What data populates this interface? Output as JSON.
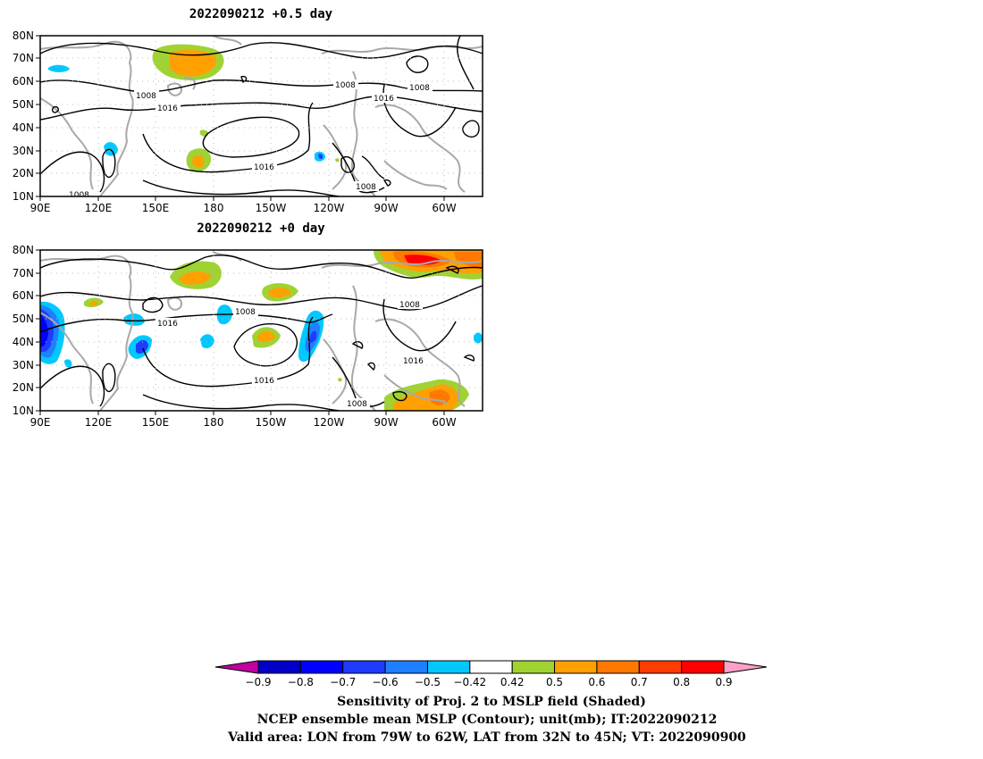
{
  "panels": [
    {
      "title": "2022090212 +0.5 day",
      "lat_ticks": [
        "80N",
        "70N",
        "60N",
        "50N",
        "40N",
        "30N",
        "20N",
        "10N"
      ],
      "lon_ticks": [
        "90E",
        "120E",
        "150E",
        "180",
        "150W",
        "120W",
        "90W",
        "60W"
      ],
      "contour_labels": [
        "1008",
        "1016",
        "1008",
        "1016",
        "1008",
        "1016",
        "1008",
        "1008"
      ]
    },
    {
      "title": "2022090212 +0 day",
      "lat_ticks": [
        "80N",
        "70N",
        "60N",
        "50N",
        "40N",
        "30N",
        "20N",
        "10N"
      ],
      "lon_ticks": [
        "90E",
        "120E",
        "150E",
        "180",
        "150W",
        "120W",
        "90W",
        "60W"
      ],
      "contour_labels": [
        "1016",
        "1008",
        "1008",
        "1016",
        "1016",
        "1008"
      ]
    }
  ],
  "colorbar": {
    "labels": [
      "−0.9",
      "−0.8",
      "−0.7",
      "−0.6",
      "−0.5",
      "−0.42",
      "0.42",
      "0.5",
      "0.6",
      "0.7",
      "0.8",
      "0.9"
    ],
    "colors": [
      "#c000a0",
      "#0000c8",
      "#0000ff",
      "#1e3cff",
      "#1e80ff",
      "#00c8ff",
      "#ffffff",
      "#a0d232",
      "#ffa000",
      "#ff7800",
      "#ff3c00",
      "#ff0000",
      "#ffa0c8"
    ]
  },
  "caption": {
    "line1": "Sensitivity of Proj. 2 to MSLP field (Shaded)",
    "line2": "NCEP ensemble mean MSLP (Contour); unit(mb); IT:2022090212",
    "line3": "Valid area: LON from 79W to 62W, LAT from 32N to 45N; VT: 2022090900"
  }
}
